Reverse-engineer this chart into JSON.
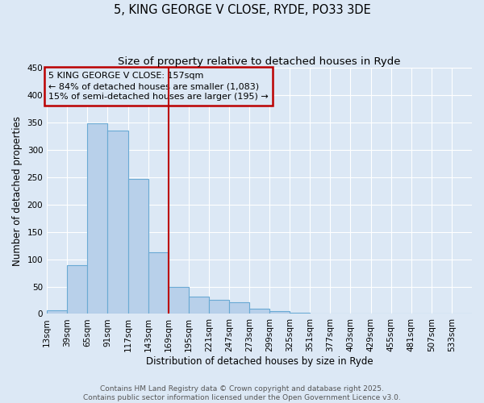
{
  "title": "5, KING GEORGE V CLOSE, RYDE, PO33 3DE",
  "subtitle": "Size of property relative to detached houses in Ryde",
  "xlabel": "Distribution of detached houses by size in Ryde",
  "ylabel": "Number of detached properties",
  "bin_labels": [
    "13sqm",
    "39sqm",
    "65sqm",
    "91sqm",
    "117sqm",
    "143sqm",
    "169sqm",
    "195sqm",
    "221sqm",
    "247sqm",
    "273sqm",
    "299sqm",
    "325sqm",
    "351sqm",
    "377sqm",
    "403sqm",
    "429sqm",
    "455sqm",
    "481sqm",
    "507sqm",
    "533sqm"
  ],
  "bar_values": [
    6,
    89,
    349,
    336,
    247,
    112,
    49,
    31,
    25,
    21,
    9,
    5,
    2,
    1,
    1,
    1,
    0,
    0,
    0,
    0,
    1
  ],
  "bin_edges_sqm": [
    13,
    39,
    65,
    91,
    117,
    143,
    169,
    195,
    221,
    247,
    273,
    299,
    325,
    351,
    377,
    403,
    429,
    455,
    481,
    507,
    533,
    559
  ],
  "vline_x": 169,
  "bar_color": "#b8d0ea",
  "bar_edge_color": "#6aaad4",
  "vline_color": "#bb0000",
  "box_color": "#bb0000",
  "annotation_line1": "5 KING GEORGE V CLOSE: 157sqm",
  "annotation_line2": "← 84% of detached houses are smaller (1,083)",
  "annotation_line3": "15% of semi-detached houses are larger (195) →",
  "ylim": [
    0,
    450
  ],
  "yticks": [
    0,
    50,
    100,
    150,
    200,
    250,
    300,
    350,
    400,
    450
  ],
  "footer1": "Contains HM Land Registry data © Crown copyright and database right 2025.",
  "footer2": "Contains public sector information licensed under the Open Government Licence v3.0.",
  "background_color": "#dce8f5",
  "grid_color": "#ffffff",
  "title_fontsize": 10.5,
  "subtitle_fontsize": 9.5,
  "axis_label_fontsize": 8.5,
  "tick_fontsize": 7.5,
  "annotation_fontsize": 8,
  "footer_fontsize": 6.5
}
